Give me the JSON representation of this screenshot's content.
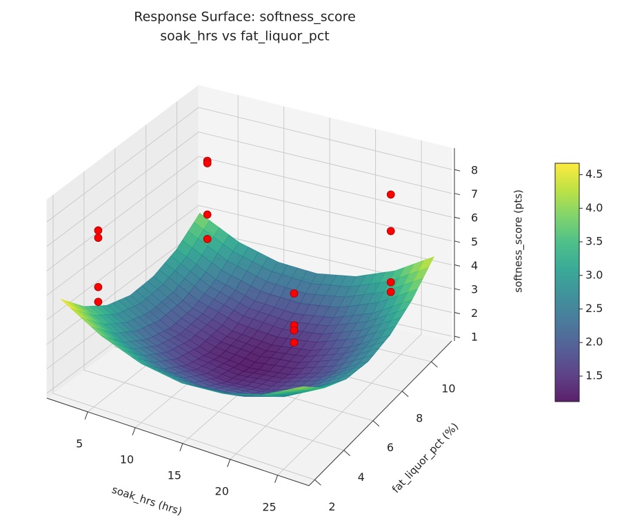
{
  "chart_data": {
    "type": "surface3d",
    "title": "Response Surface: softness_score",
    "subtitle": "soak_hrs vs fat_liquor_pct",
    "xlabel": "soak_hrs (hrs)",
    "ylabel": "fat_liquor_pct (%)",
    "zlabel": "softness_score (pts)",
    "xlim": [
      0.7,
      28.3
    ],
    "ylim": [
      1.6,
      11.4
    ],
    "zlim": [
      0.8,
      8.9
    ],
    "xticks": [
      5,
      10,
      15,
      20,
      25
    ],
    "yticks": [
      2,
      4,
      6,
      8,
      10
    ],
    "zticks": [
      1,
      2,
      3,
      4,
      5,
      6,
      7,
      8
    ],
    "grid": true,
    "colormap": "viridis",
    "clim": [
      1.12,
      4.67
    ],
    "cticks": [
      1.5,
      {
        "value": 2,
        "label": "2.0"
      },
      2.5,
      {
        "value": 3,
        "label": "3.0"
      },
      3.5,
      {
        "value": 4,
        "label": "4.0"
      },
      4.5
    ],
    "surface": {
      "x": [
        1.5,
        5.75,
        10,
        14.25,
        18.5,
        22.75,
        27
      ],
      "y": [
        2,
        3.5,
        5,
        6.5,
        8,
        9.5,
        11
      ],
      "z": [
        [
          4.75,
          3.73,
          3.06,
          2.75,
          2.8,
          3.19,
          3.95
        ],
        [
          3.78,
          2.78,
          2.15,
          1.86,
          1.93,
          2.36,
          3.14
        ],
        [
          3.16,
          2.19,
          1.58,
          1.33,
          1.43,
          1.88,
          2.7
        ],
        [
          2.9,
          1.96,
          1.38,
          1.15,
          1.28,
          1.76,
          2.6
        ],
        [
          3.0,
          2.08,
          1.53,
          1.33,
          1.48,
          1.99,
          2.86
        ],
        [
          3.44,
          2.56,
          2.03,
          1.86,
          2.05,
          2.58,
          3.48
        ],
        [
          4.25,
          3.39,
          2.9,
          2.75,
          2.96,
          3.53,
          4.45
        ]
      ]
    },
    "points": {
      "color": "#ff0000",
      "x": [
        4,
        4,
        4,
        4,
        4,
        4,
        4,
        4,
        17.3,
        17.3,
        17.3,
        17.3,
        25.5,
        25.5,
        25.5,
        25.5
      ],
      "y": [
        2.9,
        2.9,
        2.9,
        2.9,
        10,
        10,
        10,
        10,
        7.6,
        7.6,
        7.6,
        7.6,
        9,
        9,
        9,
        9
      ],
      "z": [
        7.4,
        7.1,
        5.1,
        4.5,
        6.8,
        6.7,
        4.6,
        3.6,
        3.9,
        2.6,
        2.4,
        1.9,
        8.0,
        6.5,
        4.4,
        4.0
      ]
    }
  }
}
